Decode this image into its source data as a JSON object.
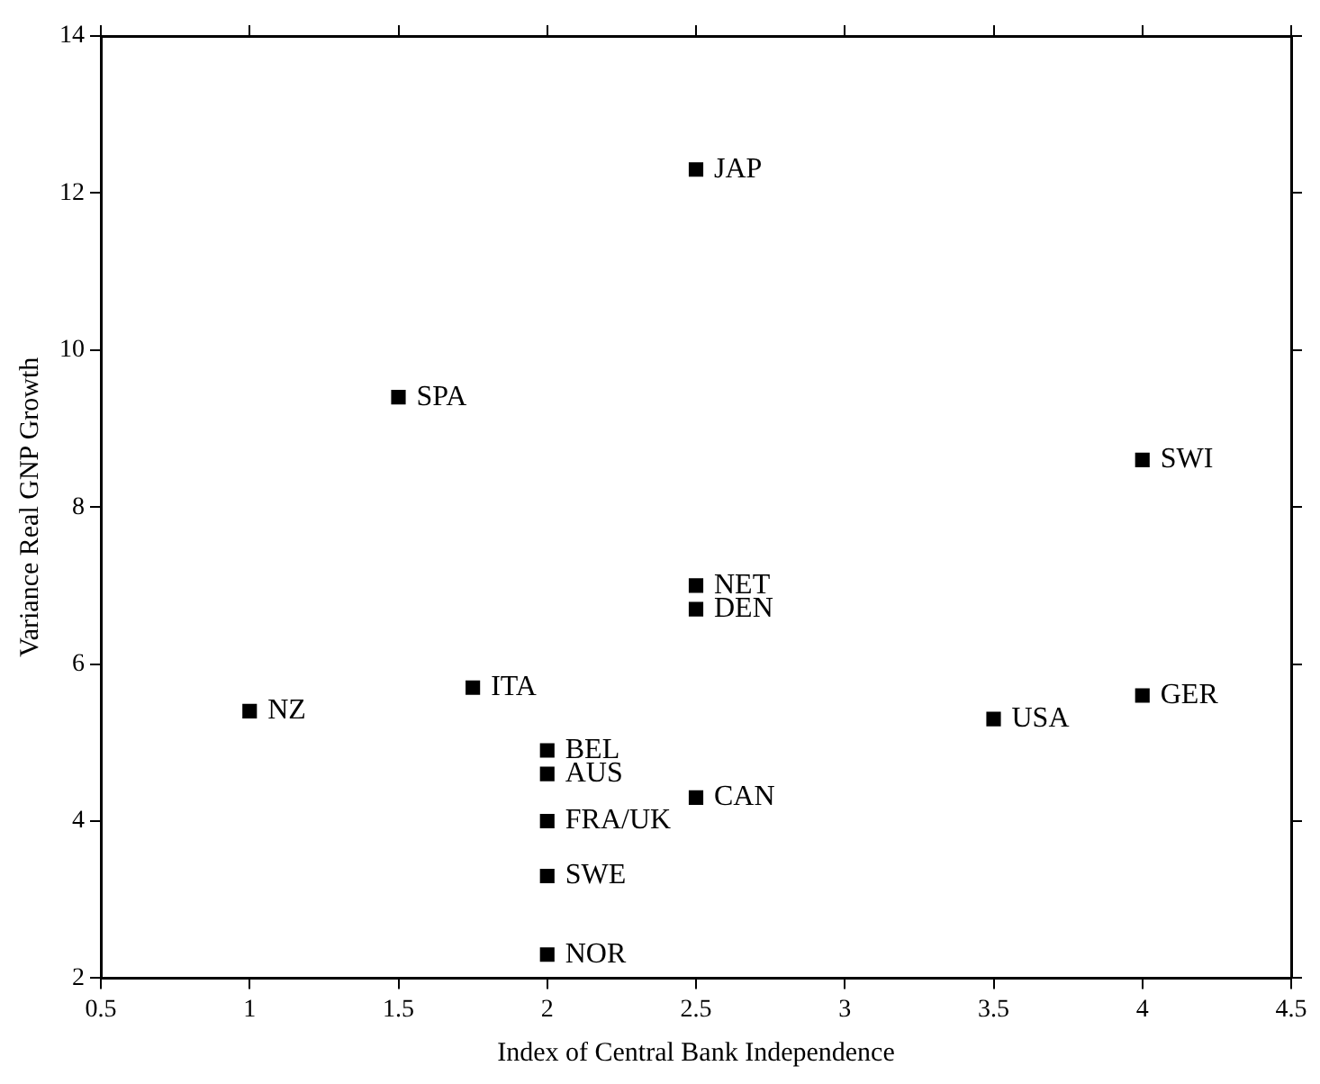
{
  "chart_data": {
    "type": "scatter",
    "xlabel": "Index of Central Bank Independence",
    "ylabel": "Variance Real GNP Growth",
    "x": [
      2.5,
      1.5,
      4,
      2.5,
      2.5,
      1.75,
      1,
      4,
      3.5,
      2,
      2,
      2.5,
      2,
      2,
      2
    ],
    "series": [
      {
        "color": "#000000",
        "values": [
          12.3,
          9.4,
          8.6,
          7.0,
          6.7,
          5.7,
          5.4,
          5.6,
          5.3,
          4.9,
          4.6,
          4.3,
          4.0,
          3.3,
          2.3
        ]
      }
    ],
    "annotations": [
      {
        "text": "JAP",
        "x": 2.5,
        "y": 12.3
      },
      {
        "text": "SPA",
        "x": 1.5,
        "y": 9.4
      },
      {
        "text": "SWI",
        "x": 4,
        "y": 8.6
      },
      {
        "text": "NET",
        "x": 2.5,
        "y": 7.0
      },
      {
        "text": "DEN",
        "x": 2.5,
        "y": 6.7
      },
      {
        "text": "ITA",
        "x": 1.75,
        "y": 5.7
      },
      {
        "text": "NZ",
        "x": 1,
        "y": 5.4
      },
      {
        "text": "GER",
        "x": 4,
        "y": 5.6
      },
      {
        "text": "USA",
        "x": 3.5,
        "y": 5.3
      },
      {
        "text": "BEL",
        "x": 2,
        "y": 4.9
      },
      {
        "text": "AUS",
        "x": 2,
        "y": 4.6
      },
      {
        "text": "CAN",
        "x": 2.5,
        "y": 4.3
      },
      {
        "text": "FRA/UK",
        "x": 2,
        "y": 4.0
      },
      {
        "text": "SWE",
        "x": 2,
        "y": 3.3
      },
      {
        "text": "NOR",
        "x": 2,
        "y": 2.3
      }
    ],
    "xlim": [
      0.5,
      4.5
    ],
    "xticks": [
      0.5,
      1,
      1.5,
      2,
      2.5,
      3,
      3.5,
      4,
      4.5
    ],
    "ylim": [
      2,
      14
    ],
    "yticks": [
      2,
      4,
      6,
      8,
      10,
      12,
      14
    ],
    "grid": false,
    "legend": false,
    "marker": "square"
  }
}
